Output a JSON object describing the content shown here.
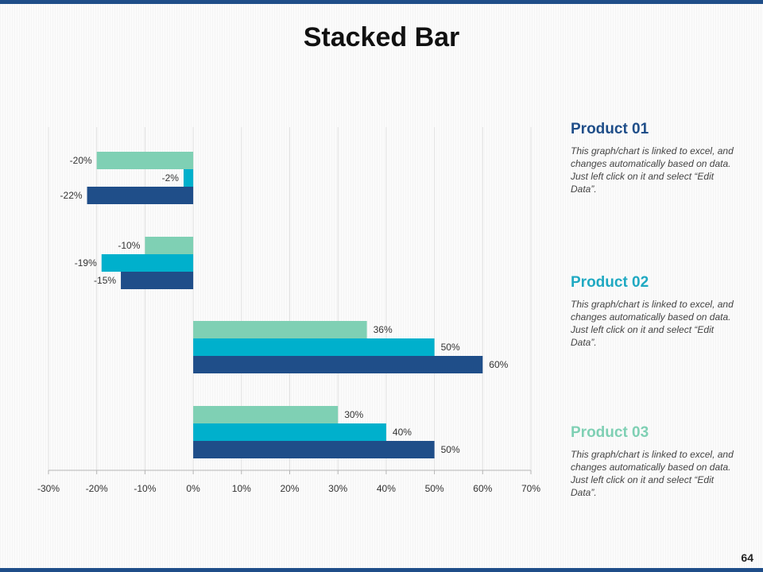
{
  "slide": {
    "title": "Stacked Bar",
    "page_number": "64"
  },
  "colors": {
    "product_01": "#1f4e89",
    "product_02": "#00b0cc",
    "product_03": "#7fd0b4",
    "bar_frame": "#1f4e89"
  },
  "panels": [
    {
      "title": "Product 01",
      "body": "This graph/chart is linked to excel, and changes automatically based on data. Just left click on it and select “Edit Data”."
    },
    {
      "title": "Product 02",
      "body": "This graph/chart is linked to excel, and changes automatically based on data. Just left click on it and select “Edit Data”."
    },
    {
      "title": "Product 03",
      "body": "This graph/chart is linked to excel, and changes automatically based on data. Just left click on it and select “Edit Data”."
    }
  ],
  "chart_data": {
    "type": "bar",
    "orientation": "horizontal",
    "title": "",
    "xlabel": "",
    "ylabel": "",
    "xlim": [
      -30,
      70
    ],
    "x_ticks": [
      "-30%",
      "-20%",
      "-10%",
      "0%",
      "10%",
      "20%",
      "30%",
      "40%",
      "50%",
      "60%",
      "70%"
    ],
    "grid": true,
    "legend": "none",
    "groups": 4,
    "series": [
      {
        "key": "product_03",
        "values": [
          -20,
          -10,
          36,
          30
        ],
        "labels": [
          "-20%",
          "-10%",
          "36%",
          "30%"
        ]
      },
      {
        "key": "product_02",
        "values": [
          -2,
          -19,
          50,
          40
        ],
        "labels": [
          "-2%",
          "-19%",
          "50%",
          "40%"
        ]
      },
      {
        "key": "product_01",
        "values": [
          -22,
          -15,
          60,
          50
        ],
        "labels": [
          "-22%",
          "-15%",
          "60%",
          "50%"
        ]
      }
    ]
  }
}
